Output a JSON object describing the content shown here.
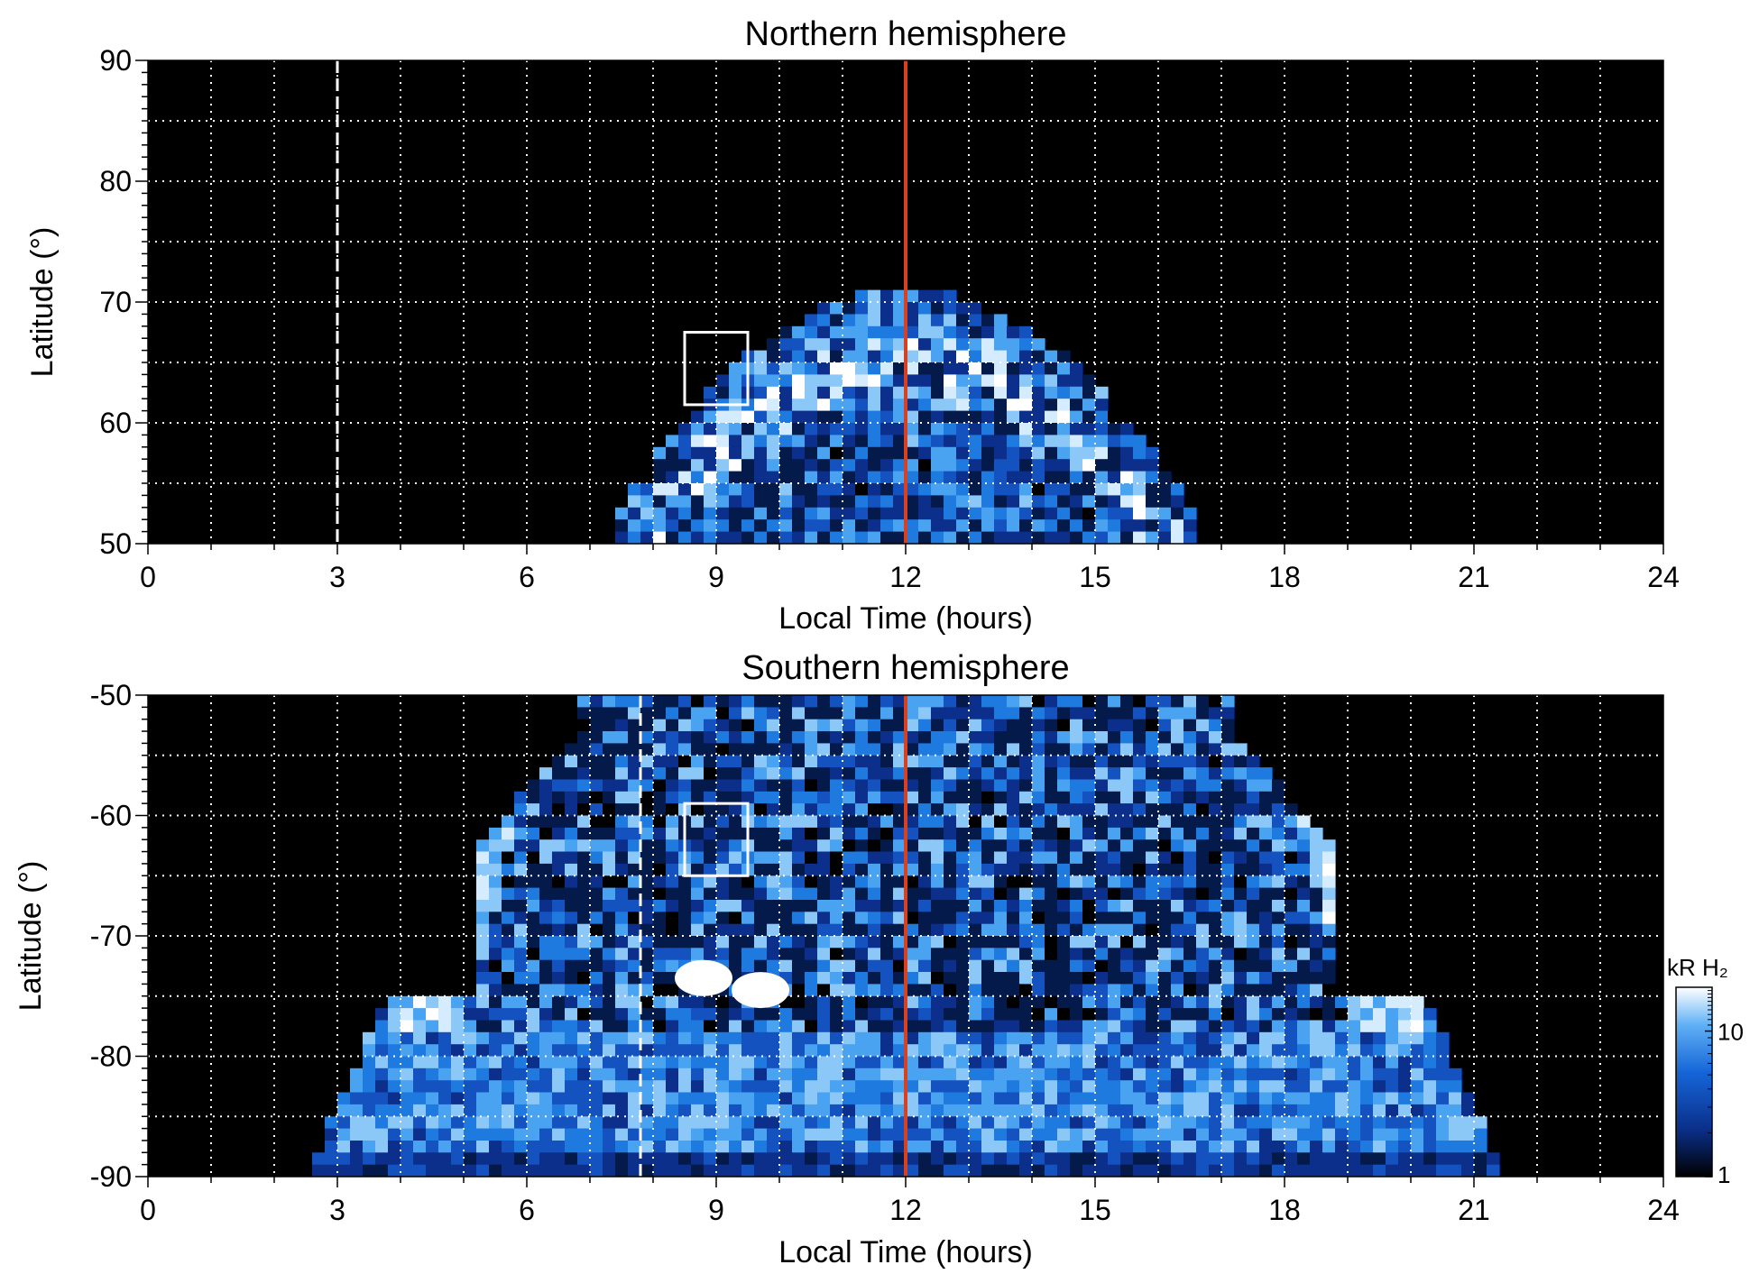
{
  "chart_data": [
    {
      "type": "heatmap",
      "title": "Northern hemisphere",
      "xlabel": "Local Time (hours)",
      "ylabel": "Latitude (°)",
      "xlim": [
        0,
        24
      ],
      "ylim": [
        50,
        90
      ],
      "x_ticks": [
        0,
        3,
        6,
        9,
        12,
        15,
        18,
        21,
        24
      ],
      "y_ticks": [
        50,
        60,
        70,
        80,
        90
      ],
      "grid": true,
      "reference_lines": [
        {
          "x": 12,
          "style": "solid",
          "color": "#d9411e"
        },
        {
          "x": 3,
          "style": "dashed",
          "color": "#ffffff"
        }
      ],
      "highlight_box": {
        "x": [
          8.5,
          9.5
        ],
        "y": [
          61.5,
          67.5
        ],
        "color": "#ffffff"
      },
      "emission_region": {
        "x_range": [
          7.8,
          16.5
        ],
        "max_latitude": 73,
        "main_oval_latitude": [
          62,
          70
        ],
        "center_lt": 12
      }
    },
    {
      "type": "heatmap",
      "title": "Southern hemisphere",
      "xlabel": "Local Time (hours)",
      "ylabel": "Latitude (°)",
      "xlim": [
        0,
        24
      ],
      "ylim": [
        -90,
        -50
      ],
      "x_ticks": [
        0,
        3,
        6,
        9,
        12,
        15,
        18,
        21,
        24
      ],
      "y_ticks": [
        -50,
        -60,
        -70,
        -80,
        -90
      ],
      "grid": true,
      "reference_lines": [
        {
          "x": 12,
          "style": "solid",
          "color": "#d9411e"
        },
        {
          "x": 7.8,
          "style": "dashed",
          "color": "#ffffff"
        }
      ],
      "highlight_box": {
        "x": [
          8.5,
          9.5
        ],
        "y": [
          -65,
          -59
        ],
        "color": "#ffffff"
      },
      "emission_region": {
        "full_latitude_lt_range": [
          5.0,
          19.0
        ],
        "main_oval_lt": [
          5.5,
          18.5
        ],
        "bright_spots": [
          {
            "x": 8.8,
            "y": -73.5
          },
          {
            "x": 9.7,
            "y": -74.5
          }
        ]
      }
    }
  ],
  "colorbar": {
    "label": "kR H₂",
    "ticks": [
      "1",
      "10"
    ],
    "scale": "log",
    "range": [
      1,
      20
    ],
    "colors": [
      "#000000",
      "#0b2f8a",
      "#1565d8",
      "#5fb0f5",
      "#ffffff"
    ]
  }
}
